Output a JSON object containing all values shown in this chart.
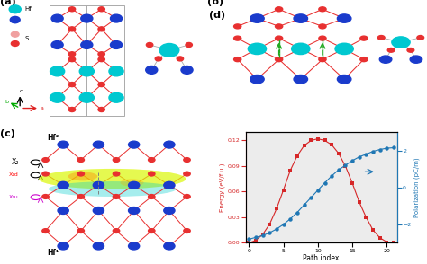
{
  "title_d": "(d)",
  "title_a": "(a)",
  "title_b": "(b)",
  "title_c": "(c)",
  "path_index": [
    0,
    1,
    2,
    3,
    4,
    5,
    6,
    7,
    8,
    9,
    10,
    11,
    12,
    13,
    14,
    15,
    16,
    17,
    18,
    19,
    20,
    21
  ],
  "energy": [
    0.0,
    0.003,
    0.01,
    0.022,
    0.04,
    0.062,
    0.085,
    0.102,
    0.114,
    0.12,
    0.122,
    0.12,
    0.115,
    0.105,
    0.09,
    0.07,
    0.048,
    0.03,
    0.015,
    0.006,
    0.001,
    0.0
  ],
  "polarization": [
    -2.8,
    -2.7,
    -2.6,
    -2.45,
    -2.25,
    -2.0,
    -1.7,
    -1.35,
    -0.95,
    -0.55,
    -0.15,
    0.25,
    0.62,
    0.95,
    1.2,
    1.45,
    1.65,
    1.8,
    1.95,
    2.05,
    2.12,
    2.15
  ],
  "energy_color": "#d62728",
  "polar_color": "#1f77b4",
  "bg_color": "#ffffff",
  "panel_bg": "#ececec",
  "xlabel": "Path index",
  "ylabel_left": "Energy (eV/f.u.)",
  "ylabel_right": "Polarization (pC/m)",
  "ylim_energy": [
    0,
    0.13
  ],
  "ylim_polar": [
    -3,
    3
  ],
  "yticks_energy": [
    0.0,
    0.03,
    0.06,
    0.09,
    0.12
  ],
  "yticks_polar": [
    -2,
    0,
    2
  ],
  "xticks": [
    0,
    5,
    10,
    15,
    20
  ],
  "hf_cyan_color": "#00c8d0",
  "hf_blue_color": "#1a3bcc",
  "s_pink_color": "#f0a0a0",
  "s_red_color": "#e83030",
  "bond_color": "#e83030",
  "green_arrow_color": "#22aa22",
  "arrow_color": "#1f77b4",
  "axis_b_color": "#0000dd",
  "axis_c_color": "#00aa00",
  "axis_a_color": "#dd2222"
}
